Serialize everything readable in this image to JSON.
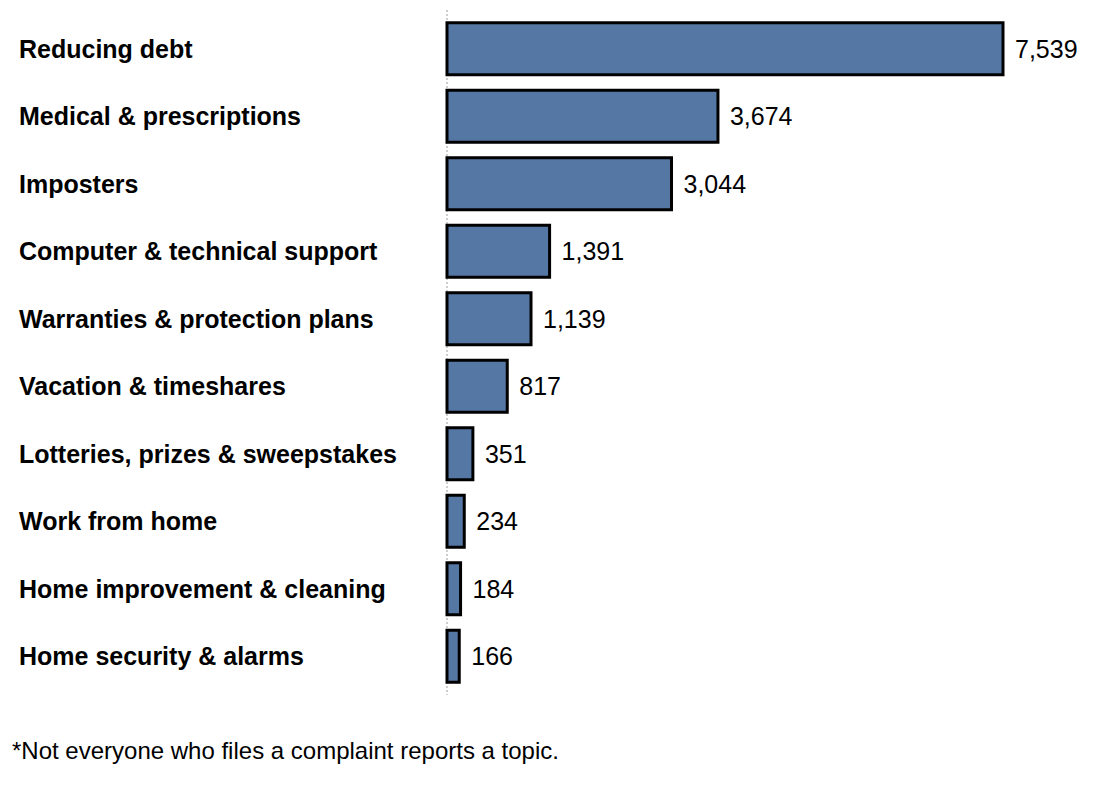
{
  "chart_data": {
    "type": "bar",
    "orientation": "horizontal",
    "categories": [
      "Reducing debt",
      "Medical & prescriptions",
      "Imposters",
      "Computer & technical support",
      "Warranties & protection plans",
      "Vacation & timeshares",
      "Lotteries, prizes & sweepstakes",
      "Work from home",
      "Home improvement & cleaning",
      "Home security & alarms"
    ],
    "values": [
      7539,
      3674,
      3044,
      1391,
      1139,
      817,
      351,
      234,
      184,
      166
    ],
    "value_labels": [
      "7,539",
      "3,674",
      "3,044",
      "1,391",
      "1,139",
      "817",
      "351",
      "234",
      "184",
      "166"
    ],
    "color": "#5577a3",
    "xlim": [
      0,
      7539
    ],
    "tick_labels": false,
    "data_labels": true,
    "grid": false,
    "annotations": [
      "*Not everyone who files a complaint reports a topic."
    ]
  }
}
